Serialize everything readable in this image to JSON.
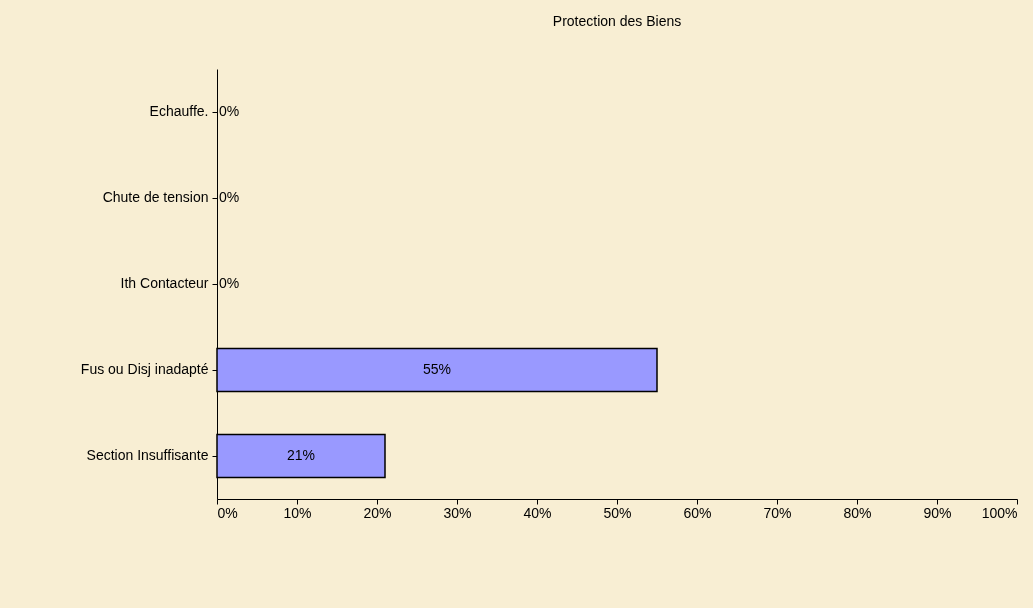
{
  "chart_data": {
    "type": "bar",
    "orientation": "horizontal",
    "title": "Protection des Biens",
    "categories": [
      "Echauffe.",
      "Chute de tension",
      "Ith Contacteur",
      "Fus ou Disj inadapté",
      "Section Insuffisante"
    ],
    "values": [
      0,
      0,
      0,
      55,
      21
    ],
    "value_labels": [
      "0%",
      "0%",
      "0%",
      "55%",
      "21%"
    ],
    "color": "#9999ff",
    "xlim": [
      0,
      100
    ],
    "xticks": [
      {
        "value": 0,
        "label": "0%"
      },
      {
        "value": 10,
        "label": "10%"
      },
      {
        "value": 20,
        "label": "20%"
      },
      {
        "value": 30,
        "label": "30%"
      },
      {
        "value": 40,
        "label": "40%"
      },
      {
        "value": 50,
        "label": "50%"
      },
      {
        "value": 60,
        "label": "60%"
      },
      {
        "value": 70,
        "label": "70%"
      },
      {
        "value": 80,
        "label": "80%"
      },
      {
        "value": 90,
        "label": "90%"
      },
      {
        "value": 100,
        "label": "100%"
      }
    ],
    "grid": false
  }
}
